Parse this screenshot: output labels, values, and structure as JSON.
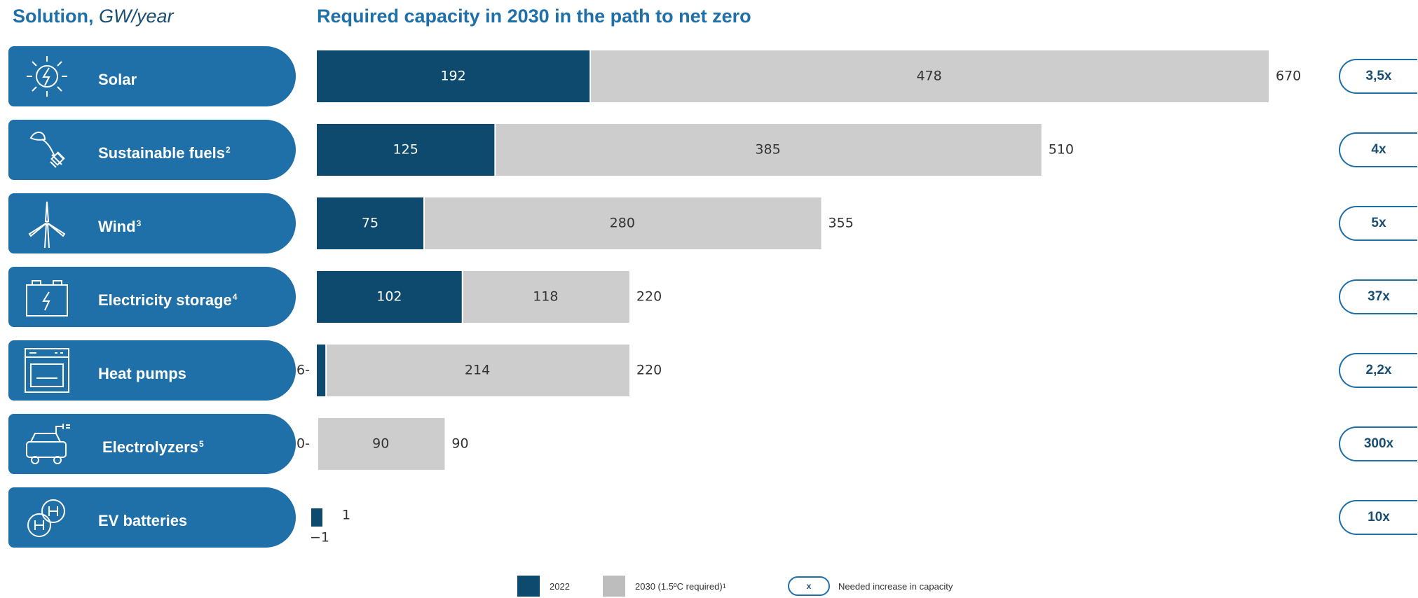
{
  "header": {
    "left_title": "Solution,",
    "left_unit": "GW/year",
    "right_title": "Required capacity in 2030 in the path to net zero"
  },
  "colors": {
    "pill": "#1f6fa8",
    "bar_2022": "#0e4a6e",
    "bar_2030": "#cdcdcd",
    "multiplier_border": "#1f6fa8"
  },
  "rows": [
    {
      "label": "Solar",
      "sup": "",
      "icon": "sun-bolt-icon",
      "multiplier": "3,5x"
    },
    {
      "label": "Sustainable fuels",
      "sup": "2",
      "icon": "plant-plug-icon",
      "multiplier": "4x"
    },
    {
      "label": "Wind",
      "sup": "3",
      "icon": "wind-turbine-icon",
      "multiplier": "5x"
    },
    {
      "label": "Electricity storage",
      "sup": "4",
      "icon": "battery-icon",
      "multiplier": "37x"
    },
    {
      "label": "Heat pumps",
      "sup": "",
      "icon": "heat-pump-icon",
      "multiplier": "2,2x"
    },
    {
      "label": "Electrolyzers",
      "sup": "5",
      "icon": "electrolyzer-icon",
      "multiplier": "300x"
    },
    {
      "label": "EV batteries",
      "sup": "",
      "icon": "hydrogen-icon",
      "multiplier": "10x"
    }
  ],
  "chart_data": {
    "type": "bar",
    "orientation": "horizontal",
    "stacked": true,
    "title": "Required capacity in 2030 in the path to net zero",
    "categories": [
      "Solar",
      "Sustainable fuels",
      "Wind",
      "Electricity storage",
      "Heat pumps",
      "Electrolyzers",
      "EV batteries"
    ],
    "series": [
      {
        "name": "2022",
        "values": [
          192,
          125,
          75,
          102,
          6,
          0,
          1
        ]
      },
      {
        "name": "2030 (1.5ºC required)",
        "values": [
          478,
          385,
          280,
          118,
          214,
          90,
          1
        ]
      }
    ],
    "totals": [
      670,
      510,
      355,
      220,
      220,
      90,
      1
    ],
    "xlim": [
      0,
      670
    ],
    "grid": false,
    "legend_position": "bottom"
  },
  "legend": {
    "item_2022": "2022",
    "item_2030": "2030 (1.5ºC required)",
    "item_2030_sup": "1",
    "oval_symbol": "x",
    "oval_label": "Needed increase in capacity"
  }
}
